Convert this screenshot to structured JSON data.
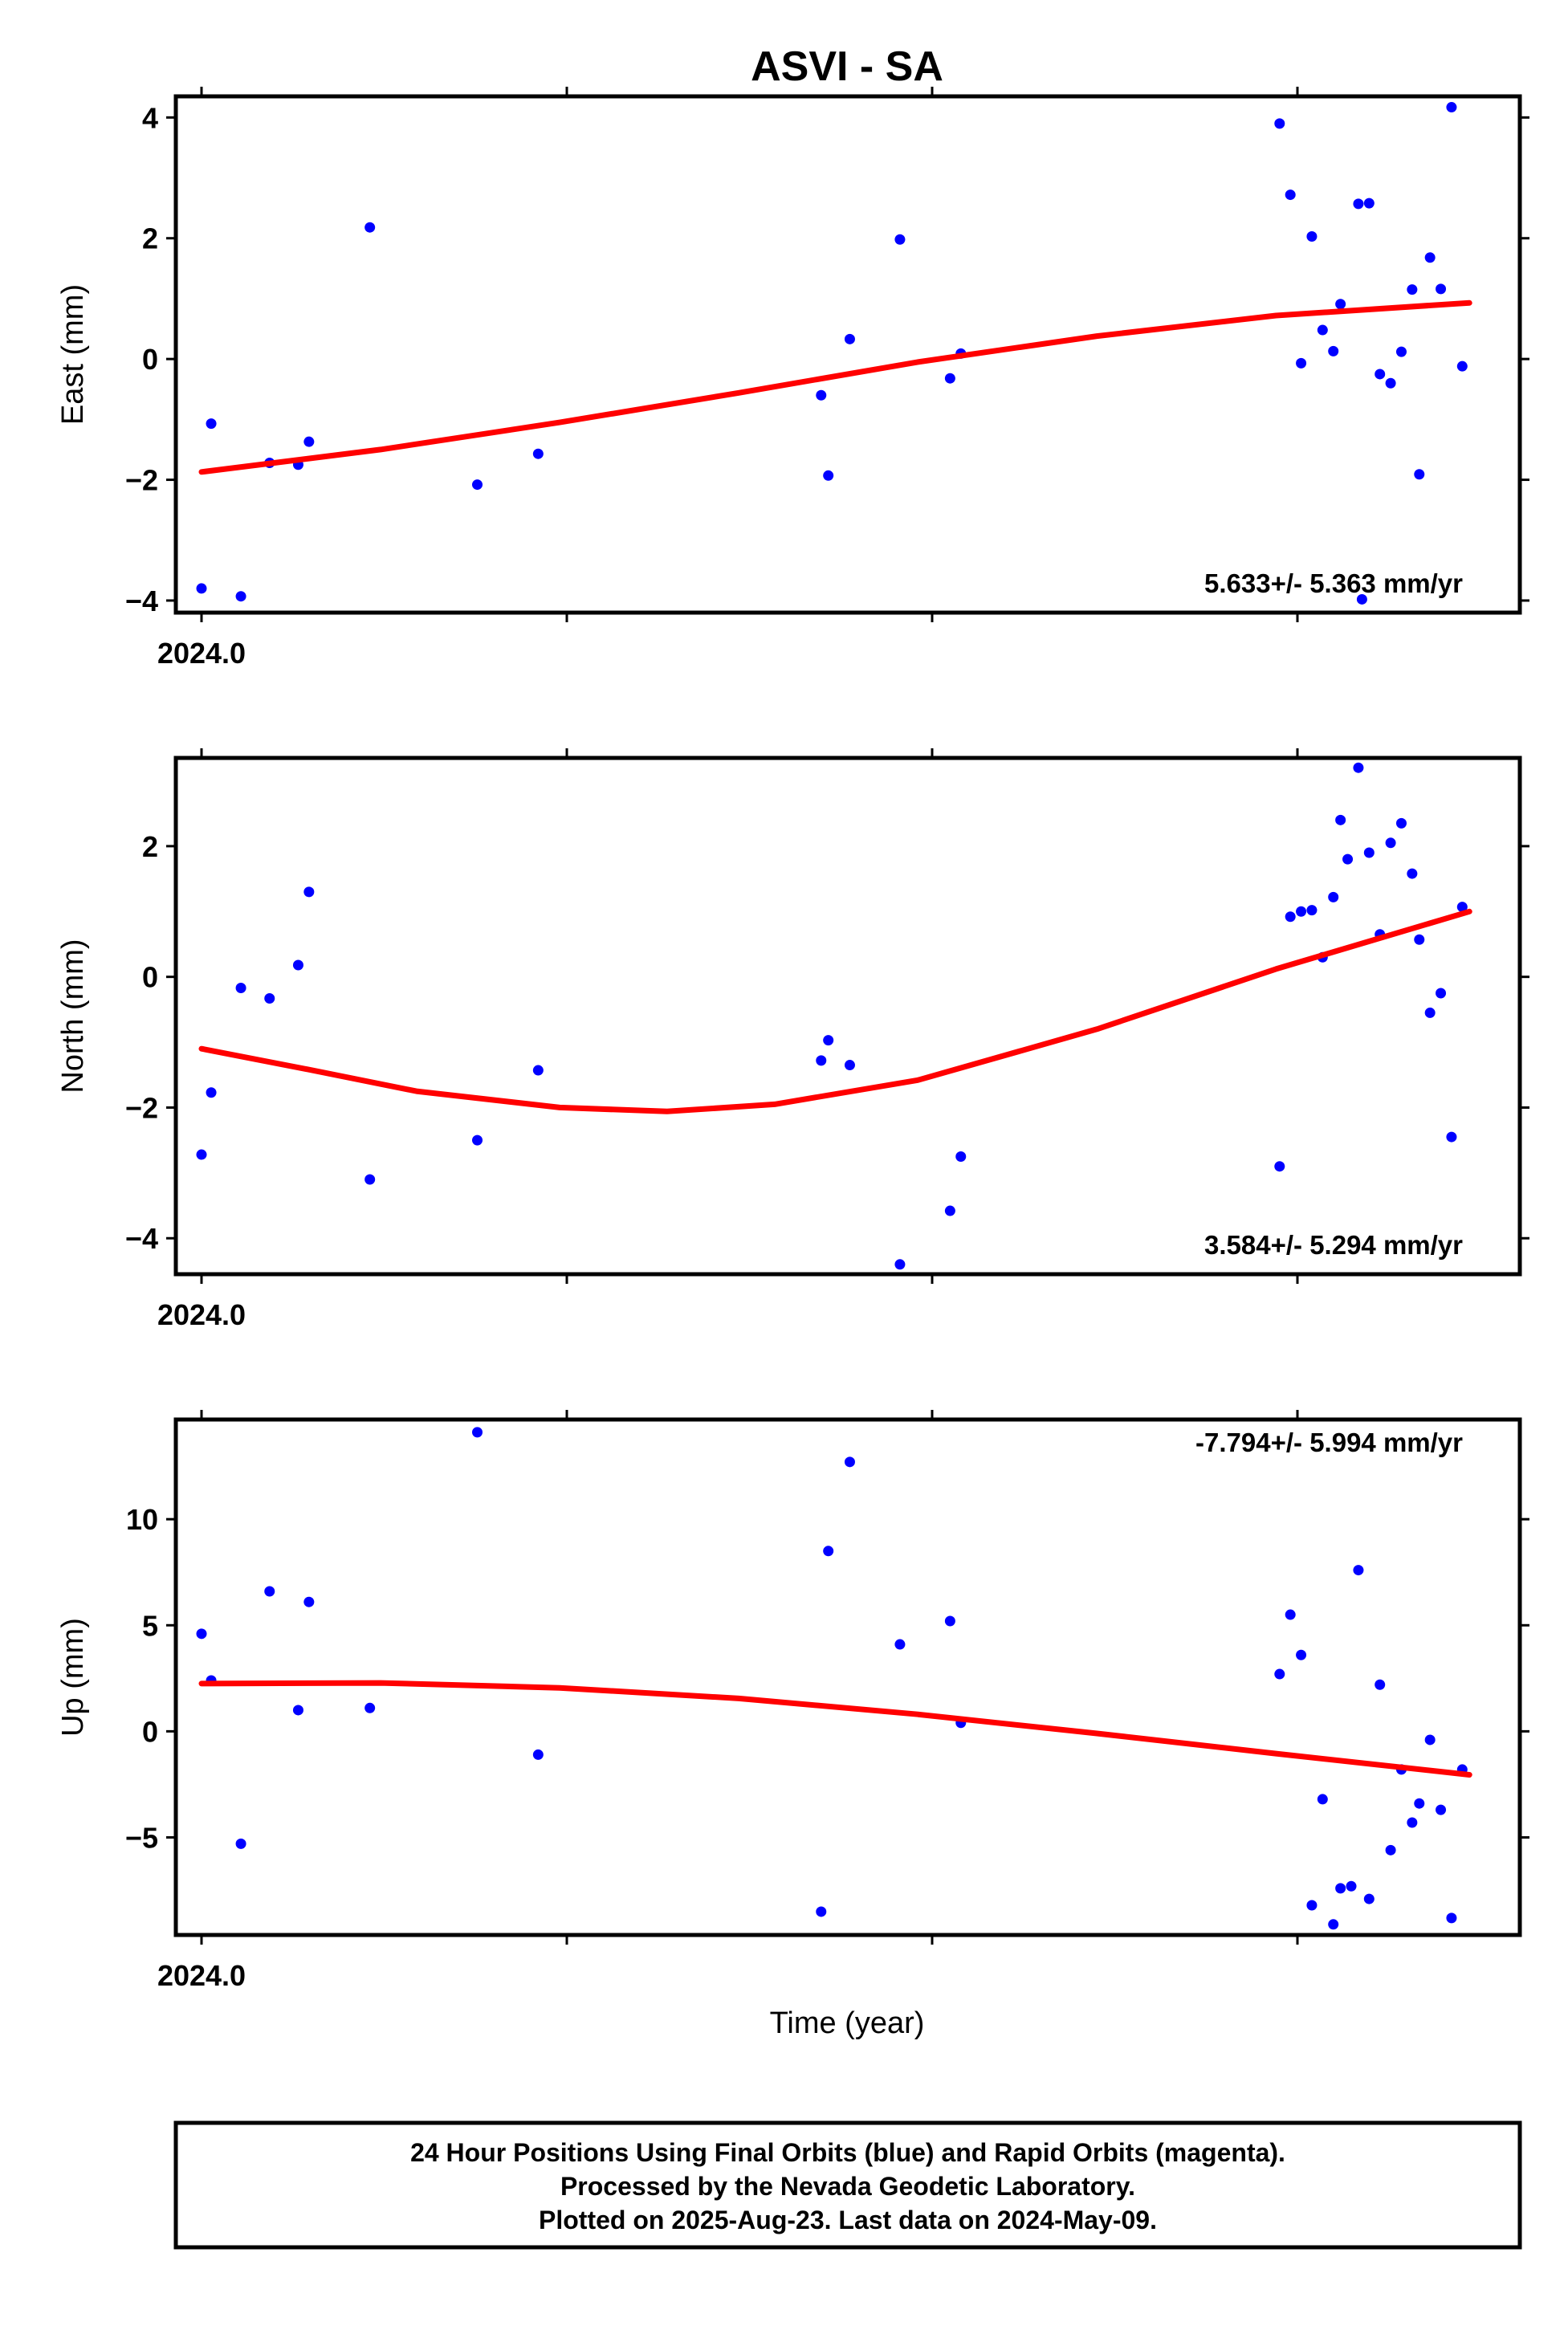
{
  "chart_data": {
    "type": "scatter",
    "title": "ASVI - SA",
    "xlabel": "Time (year)",
    "x_tick_label": "2024.0",
    "xlim": [
      2024.0,
      2024.36
    ],
    "point_color": "#0000ff",
    "fit_color": "#ff0000",
    "panels": [
      {
        "ylabel": "East (mm)",
        "rate": "5.633+/- 5.363 mm/yr",
        "yticks": [
          -4,
          -2,
          0,
          2,
          4
        ],
        "ylim": [
          -4.2,
          4.35
        ],
        "points": [
          [
            2024.0,
            -3.8
          ],
          [
            2024.0027,
            -1.07
          ],
          [
            2024.011,
            -3.93
          ],
          [
            2024.019,
            -1.72
          ],
          [
            2024.027,
            -1.75
          ],
          [
            2024.03,
            -1.37
          ],
          [
            2024.047,
            2.18
          ],
          [
            2024.077,
            -2.08
          ],
          [
            2024.094,
            -1.57
          ],
          [
            2024.173,
            -0.6
          ],
          [
            2024.175,
            -1.93
          ],
          [
            2024.181,
            0.33
          ],
          [
            2024.195,
            1.98
          ],
          [
            2024.209,
            -0.32
          ],
          [
            2024.212,
            0.09
          ],
          [
            2024.301,
            3.9
          ],
          [
            2024.304,
            2.72
          ],
          [
            2024.307,
            -0.07
          ],
          [
            2024.31,
            2.03
          ],
          [
            2024.313,
            0.48
          ],
          [
            2024.316,
            0.13
          ],
          [
            2024.318,
            0.91
          ],
          [
            2024.323,
            2.57
          ],
          [
            2024.326,
            2.58
          ],
          [
            2024.329,
            -0.25
          ],
          [
            2024.332,
            -0.4
          ],
          [
            2024.338,
            1.15
          ],
          [
            2024.34,
            -1.91
          ],
          [
            2024.343,
            1.68
          ],
          [
            2024.346,
            1.16
          ],
          [
            2024.349,
            4.17
          ],
          [
            2024.352,
            -0.12
          ],
          [
            2024.335,
            0.12
          ],
          [
            2024.324,
            -3.98
          ]
        ],
        "fit": [
          [
            2024.0,
            -1.87
          ],
          [
            2024.05,
            -1.5
          ],
          [
            2024.1,
            -1.05
          ],
          [
            2024.15,
            -0.56
          ],
          [
            2024.2,
            -0.05
          ],
          [
            2024.25,
            0.38
          ],
          [
            2024.3,
            0.72
          ],
          [
            2024.354,
            0.93
          ]
        ]
      },
      {
        "ylabel": "North (mm)",
        "rate": "3.584+/- 5.294 mm/yr",
        "yticks": [
          -4,
          -2,
          0,
          2
        ],
        "ylim": [
          -4.55,
          3.35
        ],
        "points": [
          [
            2024.0,
            -2.72
          ],
          [
            2024.0027,
            -1.77
          ],
          [
            2024.011,
            -0.17
          ],
          [
            2024.019,
            -0.33
          ],
          [
            2024.027,
            0.18
          ],
          [
            2024.03,
            1.3
          ],
          [
            2024.047,
            -3.1
          ],
          [
            2024.077,
            -2.5
          ],
          [
            2024.094,
            -1.43
          ],
          [
            2024.173,
            -1.28
          ],
          [
            2024.175,
            -0.97
          ],
          [
            2024.181,
            -1.35
          ],
          [
            2024.195,
            -4.4
          ],
          [
            2024.209,
            -3.58
          ],
          [
            2024.212,
            -2.75
          ],
          [
            2024.301,
            -2.9
          ],
          [
            2024.304,
            0.92
          ],
          [
            2024.307,
            1.0
          ],
          [
            2024.31,
            1.02
          ],
          [
            2024.313,
            0.3
          ],
          [
            2024.316,
            1.22
          ],
          [
            2024.318,
            2.4
          ],
          [
            2024.32,
            1.8
          ],
          [
            2024.323,
            3.2
          ],
          [
            2024.326,
            1.9
          ],
          [
            2024.329,
            0.65
          ],
          [
            2024.332,
            2.05
          ],
          [
            2024.335,
            2.35
          ],
          [
            2024.338,
            1.58
          ],
          [
            2024.34,
            0.57
          ],
          [
            2024.343,
            -0.55
          ],
          [
            2024.346,
            -0.25
          ],
          [
            2024.349,
            -2.45
          ],
          [
            2024.352,
            1.07
          ]
        ],
        "fit": [
          [
            2024.0,
            -1.1
          ],
          [
            2024.03,
            -1.42
          ],
          [
            2024.06,
            -1.75
          ],
          [
            2024.1,
            -2.0
          ],
          [
            2024.13,
            -2.06
          ],
          [
            2024.16,
            -1.95
          ],
          [
            2024.2,
            -1.58
          ],
          [
            2024.25,
            -0.8
          ],
          [
            2024.3,
            0.12
          ],
          [
            2024.354,
            1.0
          ]
        ]
      },
      {
        "ylabel": "Up (mm)",
        "rate": "-7.794+/- 5.994 mm/yr",
        "yticks": [
          -5,
          0,
          5,
          10
        ],
        "ylim": [
          -9.6,
          14.7
        ],
        "points": [
          [
            2024.0,
            4.6
          ],
          [
            2024.0027,
            2.4
          ],
          [
            2024.011,
            -5.3
          ],
          [
            2024.019,
            6.6
          ],
          [
            2024.027,
            1.0
          ],
          [
            2024.03,
            6.1
          ],
          [
            2024.047,
            1.1
          ],
          [
            2024.077,
            14.1
          ],
          [
            2024.094,
            -1.1
          ],
          [
            2024.173,
            -8.5
          ],
          [
            2024.175,
            8.5
          ],
          [
            2024.181,
            12.7
          ],
          [
            2024.195,
            4.1
          ],
          [
            2024.209,
            5.2
          ],
          [
            2024.212,
            0.4
          ],
          [
            2024.301,
            2.7
          ],
          [
            2024.304,
            5.5
          ],
          [
            2024.307,
            3.6
          ],
          [
            2024.31,
            -8.2
          ],
          [
            2024.313,
            -3.2
          ],
          [
            2024.316,
            -9.1
          ],
          [
            2024.318,
            -7.4
          ],
          [
            2024.321,
            -7.3
          ],
          [
            2024.323,
            7.6
          ],
          [
            2024.326,
            -7.9
          ],
          [
            2024.329,
            2.2
          ],
          [
            2024.332,
            -5.6
          ],
          [
            2024.335,
            -1.8
          ],
          [
            2024.338,
            -4.3
          ],
          [
            2024.34,
            -3.4
          ],
          [
            2024.343,
            -0.4
          ],
          [
            2024.346,
            -3.7
          ],
          [
            2024.349,
            -8.8
          ],
          [
            2024.352,
            -1.8
          ]
        ],
        "fit": [
          [
            2024.0,
            2.25
          ],
          [
            2024.05,
            2.28
          ],
          [
            2024.1,
            2.05
          ],
          [
            2024.15,
            1.55
          ],
          [
            2024.2,
            0.8
          ],
          [
            2024.25,
            -0.1
          ],
          [
            2024.3,
            -1.05
          ],
          [
            2024.354,
            -2.05
          ]
        ]
      }
    ]
  },
  "footer": {
    "lines": [
      "24 Hour Positions Using Final Orbits (blue) and Rapid Orbits (magenta).",
      "Processed by the Nevada Geodetic Laboratory.",
      "Plotted on 2025-Aug-23. Last data on 2024-May-09."
    ]
  }
}
